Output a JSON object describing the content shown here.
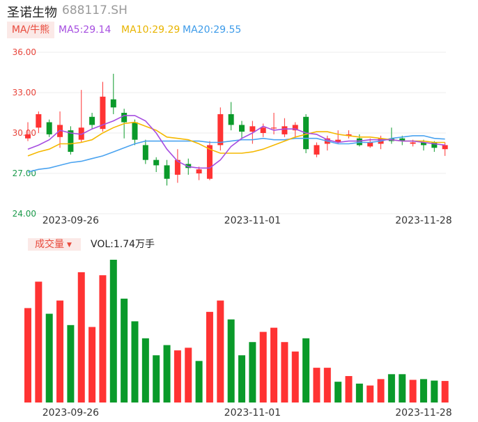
{
  "header": {
    "name": "圣诺生物",
    "code": "688117.SH"
  },
  "legend": {
    "ma_tag": "MA/牛熊",
    "ma5": "MA5:29.14",
    "ma10": "MA10:29.29",
    "ma20": "MA20:29.55"
  },
  "volume_panel": {
    "tag": "成交量",
    "value": "VOL:1.74万手"
  },
  "colors": {
    "up": "#ff3333",
    "down": "#0a9a2a",
    "ma5": "#a64ee0",
    "ma10": "#f5b800",
    "ma20": "#4aa3f0"
  },
  "chart_data": [
    {
      "type": "candlestick",
      "y_ticks": [
        "36.00",
        "33.00",
        "30.00",
        "27.00",
        "24.00"
      ],
      "ylim": [
        24,
        36
      ],
      "x_tick_labels": [
        "2023-09-26",
        "2023-11-01",
        "2023-11-28"
      ],
      "grid": true,
      "candles": [
        {
          "open": 29.6,
          "close": 29.9,
          "high": 30.8,
          "low": 29.4
        },
        {
          "open": 30.4,
          "close": 31.4,
          "high": 31.6,
          "low": 30.0
        },
        {
          "open": 30.8,
          "close": 29.9,
          "high": 31.0,
          "low": 29.7
        },
        {
          "open": 29.7,
          "close": 30.6,
          "high": 31.6,
          "low": 28.9
        },
        {
          "open": 30.2,
          "close": 28.6,
          "high": 30.5,
          "low": 28.4
        },
        {
          "open": 29.5,
          "close": 30.4,
          "high": 33.2,
          "low": 29.3
        },
        {
          "open": 31.2,
          "close": 30.6,
          "high": 31.5,
          "low": 30.3
        },
        {
          "open": 30.3,
          "close": 32.7,
          "high": 33.8,
          "low": 30.1
        },
        {
          "open": 32.5,
          "close": 31.9,
          "high": 34.4,
          "low": 31.4
        },
        {
          "open": 31.5,
          "close": 30.8,
          "high": 31.8,
          "low": 29.6
        },
        {
          "open": 30.8,
          "close": 29.5,
          "high": 31.0,
          "low": 29.1
        },
        {
          "open": 29.1,
          "close": 28.0,
          "high": 29.5,
          "low": 27.7
        },
        {
          "open": 28.0,
          "close": 27.6,
          "high": 28.2,
          "low": 27.1
        },
        {
          "open": 27.6,
          "close": 26.6,
          "high": 28.0,
          "low": 26.1
        },
        {
          "open": 26.9,
          "close": 28.0,
          "high": 28.8,
          "low": 26.3
        },
        {
          "open": 27.7,
          "close": 27.4,
          "high": 28.1,
          "low": 26.9
        },
        {
          "open": 27.0,
          "close": 27.3,
          "high": 27.5,
          "low": 26.5
        },
        {
          "open": 26.6,
          "close": 29.1,
          "high": 29.4,
          "low": 26.5
        },
        {
          "open": 29.1,
          "close": 31.4,
          "high": 31.9,
          "low": 28.7
        },
        {
          "open": 31.4,
          "close": 30.6,
          "high": 32.3,
          "low": 30.2
        },
        {
          "open": 30.6,
          "close": 30.1,
          "high": 30.9,
          "low": 29.6
        },
        {
          "open": 30.1,
          "close": 30.5,
          "high": 30.9,
          "low": 29.2
        },
        {
          "open": 30.0,
          "close": 30.4,
          "high": 30.7,
          "low": 29.7
        },
        {
          "open": 30.4,
          "close": 30.4,
          "high": 31.5,
          "low": 29.9
        },
        {
          "open": 29.9,
          "close": 30.5,
          "high": 31.1,
          "low": 29.7
        },
        {
          "open": 30.2,
          "close": 30.6,
          "high": 30.8,
          "low": 29.6
        },
        {
          "open": 31.2,
          "close": 28.8,
          "high": 31.4,
          "low": 28.5
        },
        {
          "open": 28.4,
          "close": 29.1,
          "high": 29.3,
          "low": 28.2
        },
        {
          "open": 29.2,
          "close": 29.6,
          "high": 29.8,
          "low": 28.7
        },
        {
          "open": 29.3,
          "close": 29.5,
          "high": 30.2,
          "low": 29.2
        },
        {
          "open": 29.8,
          "close": 29.9,
          "high": 30.2,
          "low": 29.6
        },
        {
          "open": 29.6,
          "close": 29.1,
          "high": 29.9,
          "low": 29.0
        },
        {
          "open": 29.0,
          "close": 29.3,
          "high": 29.6,
          "low": 28.9
        },
        {
          "open": 29.2,
          "close": 29.6,
          "high": 29.8,
          "low": 28.8
        },
        {
          "open": 29.6,
          "close": 29.4,
          "high": 30.4,
          "low": 29.2
        },
        {
          "open": 29.6,
          "close": 29.4,
          "high": 29.8,
          "low": 29.1
        },
        {
          "open": 29.2,
          "close": 29.3,
          "high": 29.5,
          "low": 29.0
        },
        {
          "open": 29.3,
          "close": 29.1,
          "high": 29.5,
          "low": 28.7
        },
        {
          "open": 29.3,
          "close": 28.9,
          "high": 29.4,
          "low": 28.6
        },
        {
          "open": 28.8,
          "close": 29.1,
          "high": 29.3,
          "low": 28.3
        }
      ],
      "ma5": [
        28.8,
        29.1,
        29.5,
        30.2,
        30.0,
        29.9,
        30.3,
        30.6,
        30.9,
        31.3,
        31.3,
        30.9,
        30.0,
        28.8,
        27.9,
        27.5,
        27.4,
        27.4,
        28.0,
        29.0,
        29.6,
        30.0,
        30.5,
        30.2,
        30.3,
        30.3,
        30.0,
        29.9,
        29.5,
        29.3,
        29.4,
        29.4,
        29.5,
        29.5,
        29.5,
        29.4,
        29.4,
        29.3,
        29.2,
        29.1
      ],
      "ma10": [
        28.3,
        28.6,
        28.8,
        29.2,
        29.2,
        29.3,
        29.5,
        30.0,
        30.4,
        30.7,
        30.8,
        30.5,
        30.2,
        29.7,
        29.6,
        29.5,
        29.2,
        28.8,
        28.5,
        28.5,
        28.5,
        28.6,
        28.8,
        29.1,
        29.4,
        29.7,
        29.9,
        30.1,
        30.1,
        29.9,
        29.8,
        29.7,
        29.7,
        29.6,
        29.5,
        29.4,
        29.4,
        29.4,
        29.3,
        29.3
      ],
      "ma20": [
        27.1,
        27.3,
        27.4,
        27.6,
        27.8,
        27.9,
        28.1,
        28.3,
        28.6,
        28.9,
        29.2,
        29.4,
        29.4,
        29.4,
        29.4,
        29.4,
        29.4,
        29.3,
        29.3,
        29.4,
        29.5,
        29.5,
        29.6,
        29.5,
        29.5,
        29.6,
        29.6,
        29.6,
        29.4,
        29.2,
        29.2,
        29.3,
        29.3,
        29.4,
        29.6,
        29.7,
        29.8,
        29.8,
        29.6,
        29.55
      ]
    },
    {
      "type": "bar",
      "name": "volume",
      "x_tick_labels": [
        "2023-09-26",
        "2023-11-01",
        "2023-11-28"
      ],
      "values": [
        2.5,
        3.2,
        2.35,
        2.7,
        2.05,
        3.45,
        2.0,
        3.37,
        3.78,
        2.75,
        2.15,
        1.7,
        1.25,
        1.52,
        1.38,
        1.45,
        1.1,
        2.4,
        2.7,
        2.2,
        1.25,
        1.6,
        1.87,
        1.98,
        1.6,
        1.35,
        1.7,
        0.92,
        0.92,
        0.55,
        0.7,
        0.5,
        0.45,
        0.62,
        0.75,
        0.75,
        0.6,
        0.62,
        0.58,
        0.57
      ],
      "up": [
        true,
        true,
        false,
        true,
        false,
        true,
        true,
        true,
        false,
        false,
        false,
        false,
        false,
        false,
        true,
        true,
        false,
        true,
        true,
        false,
        false,
        false,
        true,
        true,
        true,
        true,
        false,
        true,
        true,
        false,
        true,
        false,
        true,
        true,
        false,
        false,
        true,
        false,
        false,
        true
      ]
    }
  ]
}
